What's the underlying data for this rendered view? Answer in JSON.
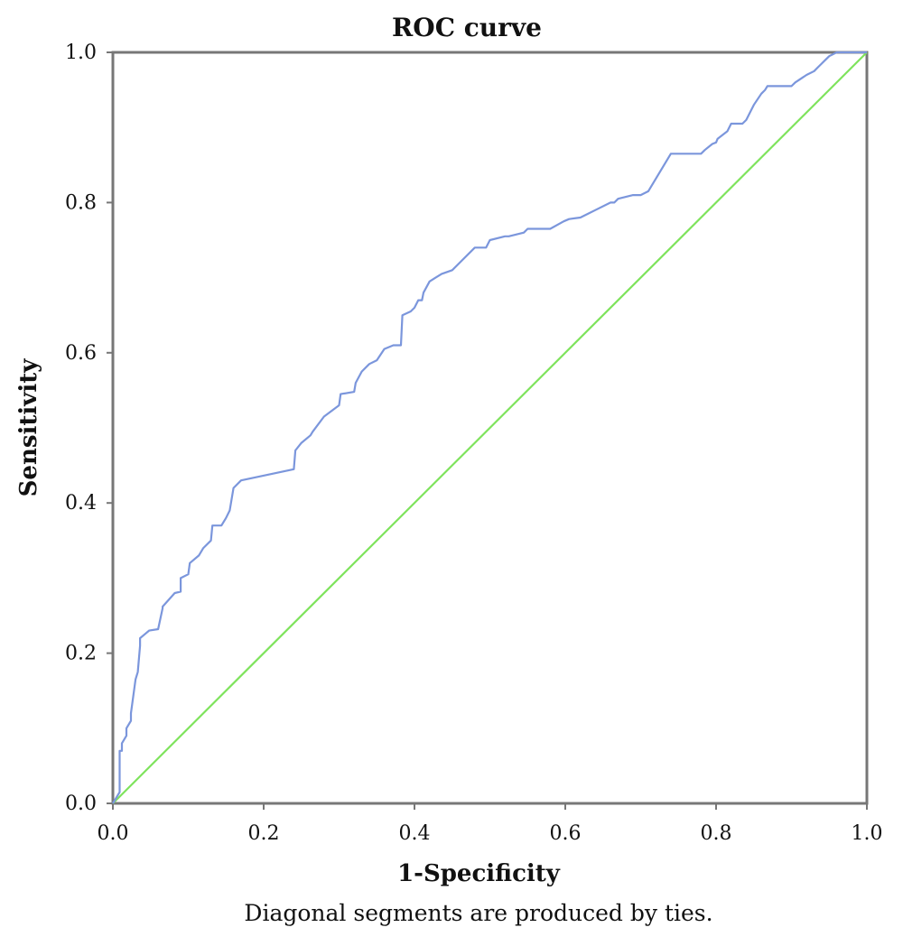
{
  "chart_data": {
    "type": "line",
    "title": "ROC curve",
    "xlabel": "1-Specificity",
    "ylabel": "Sensitivity",
    "footnote": "Diagonal segments are produced by ties.",
    "xlim": [
      0,
      1
    ],
    "ylim": [
      0,
      1
    ],
    "xticks": [
      "0.0",
      "0.2",
      "0.4",
      "0.6",
      "0.8",
      "1.0"
    ],
    "yticks": [
      "0.0",
      "0.2",
      "0.4",
      "0.6",
      "0.8",
      "1.0"
    ],
    "grid": false,
    "colors": {
      "roc": "#7b96dc",
      "reference": "#7ee35c",
      "frame": "#777777"
    },
    "series": [
      {
        "x": [
          0.0,
          0.003,
          0.006,
          0.009,
          0.009,
          0.012,
          0.012,
          0.018,
          0.018,
          0.024,
          0.024,
          0.03,
          0.033,
          0.036,
          0.036,
          0.042,
          0.042,
          0.048,
          0.06,
          0.066,
          0.066,
          0.082,
          0.09,
          0.09,
          0.1,
          0.102,
          0.114,
          0.12,
          0.13,
          0.132,
          0.144,
          0.15,
          0.155,
          0.16,
          0.17,
          0.24,
          0.242,
          0.25,
          0.262,
          0.265,
          0.28,
          0.3,
          0.302,
          0.32,
          0.322,
          0.33,
          0.34,
          0.35,
          0.36,
          0.372,
          0.382,
          0.384,
          0.395,
          0.4,
          0.405,
          0.41,
          0.412,
          0.42,
          0.428,
          0.436,
          0.45,
          0.46,
          0.48,
          0.495,
          0.5,
          0.52,
          0.525,
          0.545,
          0.55,
          0.58,
          0.598,
          0.605,
          0.62,
          0.63,
          0.64,
          0.66,
          0.665,
          0.67,
          0.69,
          0.7,
          0.71,
          0.74,
          0.78,
          0.785,
          0.795,
          0.8,
          0.802,
          0.815,
          0.82,
          0.835,
          0.84,
          0.85,
          0.86,
          0.865,
          0.868,
          0.9,
          0.905,
          0.92,
          0.93,
          0.935,
          0.94,
          0.945,
          0.95,
          0.96,
          0.98,
          1.0
        ],
        "y": [
          0.0,
          0.005,
          0.01,
          0.015,
          0.07,
          0.07,
          0.08,
          0.09,
          0.1,
          0.11,
          0.12,
          0.165,
          0.175,
          0.21,
          0.22,
          0.225,
          0.225,
          0.23,
          0.232,
          0.26,
          0.262,
          0.28,
          0.282,
          0.3,
          0.305,
          0.32,
          0.33,
          0.34,
          0.35,
          0.37,
          0.37,
          0.38,
          0.39,
          0.42,
          0.43,
          0.445,
          0.47,
          0.48,
          0.49,
          0.495,
          0.515,
          0.53,
          0.545,
          0.548,
          0.56,
          0.575,
          0.585,
          0.59,
          0.605,
          0.61,
          0.61,
          0.65,
          0.655,
          0.66,
          0.67,
          0.67,
          0.68,
          0.695,
          0.7,
          0.705,
          0.71,
          0.72,
          0.74,
          0.74,
          0.75,
          0.755,
          0.755,
          0.76,
          0.765,
          0.765,
          0.775,
          0.778,
          0.78,
          0.785,
          0.79,
          0.8,
          0.8,
          0.805,
          0.81,
          0.81,
          0.815,
          0.865,
          0.865,
          0.87,
          0.878,
          0.88,
          0.885,
          0.895,
          0.905,
          0.905,
          0.91,
          0.93,
          0.945,
          0.95,
          0.955,
          0.955,
          0.96,
          0.97,
          0.975,
          0.98,
          0.985,
          0.99,
          0.995,
          1.0,
          1.0,
          1.0
        ]
      },
      {
        "x": [
          0,
          1
        ],
        "y": [
          0,
          1
        ]
      }
    ]
  }
}
